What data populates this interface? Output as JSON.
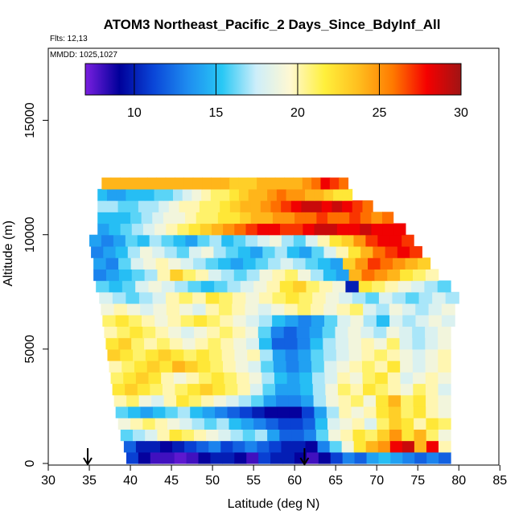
{
  "chart_data": {
    "type": "heatmap",
    "title": "ATOM3 Northeast_Pacific_2 Days_Since_BdyInf_All",
    "flights_text": "Flts: 12,13",
    "mmdd_text": "MMDD: 1025,1027",
    "xlabel": "Latitude (deg N)",
    "ylabel": "Altitude (m)",
    "xlim": [
      30,
      85
    ],
    "ylim": [
      0,
      17500
    ],
    "x_ticks": [
      30,
      35,
      40,
      45,
      50,
      55,
      60,
      65,
      70,
      75,
      80,
      85
    ],
    "y_ticks": [
      0,
      5000,
      10000,
      15000
    ],
    "colorbar": {
      "range": [
        7,
        30
      ],
      "ticks": [
        10,
        15,
        20,
        25,
        30
      ],
      "colors": [
        "#7a1fe0",
        "#00009a",
        "#0a46d8",
        "#1e8cf0",
        "#28c8f5",
        "#cdeefa",
        "#fff8d2",
        "#fff03c",
        "#ffbe1e",
        "#ff7a00",
        "#f50000",
        "#a01414"
      ]
    },
    "arrows_lat": [
      34.8,
      61.2
    ],
    "grid": false,
    "legend": "colorbar top",
    "rows": [
      {
        "alt": 250,
        "lat_range": [
          39.5,
          79
        ],
        "values": [
          11,
          9,
          8,
          8,
          7.5,
          8,
          9,
          10,
          10,
          9,
          8,
          11,
          10,
          10,
          9,
          8,
          9,
          11,
          13,
          12,
          14,
          15,
          14,
          13,
          12,
          13,
          12
        ]
      },
      {
        "alt": 750,
        "lat_range": [
          39.2,
          79
        ],
        "values": [
          12,
          10,
          10,
          9,
          10,
          11,
          12,
          13,
          11,
          12,
          13,
          12,
          11,
          10,
          10,
          9,
          13,
          16,
          19,
          22,
          24,
          25,
          28,
          29,
          24,
          28,
          20
        ]
      },
      {
        "alt": 1250,
        "lat_range": [
          38.8,
          79
        ],
        "values": [
          16,
          17,
          18,
          20,
          22,
          21,
          20,
          19,
          18,
          17,
          16,
          17,
          14,
          12,
          12,
          13,
          16,
          19,
          20,
          22,
          21,
          23,
          25,
          22,
          24,
          21,
          19
        ]
      },
      {
        "alt": 1750,
        "lat_range": [
          38.5,
          79
        ],
        "values": [
          19,
          20,
          21,
          20,
          19,
          18,
          17,
          16,
          17,
          15,
          14,
          13,
          12,
          11,
          11,
          12,
          15,
          18,
          19,
          20,
          18,
          21,
          23,
          22,
          20,
          22,
          21
        ]
      },
      {
        "alt": 2250,
        "lat_range": [
          38.2,
          79
        ],
        "values": [
          16,
          15,
          14,
          15,
          16,
          17,
          15,
          14,
          13,
          12,
          11,
          10,
          9,
          9,
          9,
          11,
          14,
          17,
          20,
          19,
          20,
          22,
          23,
          21,
          22,
          20,
          19
        ]
      },
      {
        "alt": 2750,
        "lat_range": [
          38,
          79
        ],
        "values": [
          20,
          21,
          19,
          18,
          20,
          22,
          21,
          20,
          19,
          18,
          17,
          16,
          14,
          13,
          13,
          14,
          17,
          19,
          20,
          21,
          19,
          22,
          24,
          21,
          22,
          20,
          19
        ]
      },
      {
        "alt": 3250,
        "lat_range": [
          37.8,
          79
        ],
        "values": [
          22,
          23,
          22,
          21,
          20,
          21,
          22,
          23,
          22,
          21,
          20,
          18,
          16,
          14,
          14,
          15,
          17,
          19,
          21,
          20,
          22,
          21,
          20,
          19,
          21,
          20,
          18
        ]
      },
      {
        "alt": 3750,
        "lat_range": [
          37.6,
          79
        ],
        "values": [
          21,
          22,
          23,
          22,
          20,
          19,
          20,
          21,
          22,
          21,
          20,
          19,
          17,
          15,
          14,
          15,
          17,
          18,
          20,
          19,
          21,
          22,
          20,
          18,
          19,
          20,
          19
        ]
      },
      {
        "alt": 4250,
        "lat_range": [
          37.4,
          79
        ],
        "values": [
          20,
          21,
          22,
          23,
          22,
          24,
          23,
          22,
          21,
          20,
          19,
          18,
          16,
          14,
          13,
          14,
          16,
          18,
          19,
          20,
          21,
          20,
          22,
          19,
          18,
          19,
          20
        ]
      },
      {
        "alt": 4750,
        "lat_range": [
          37.2,
          79
        ],
        "values": [
          23,
          22,
          21,
          22,
          23,
          22,
          21,
          22,
          21,
          20,
          19,
          20,
          17,
          14,
          13,
          14,
          16,
          17,
          18,
          19,
          20,
          21,
          20,
          19,
          18,
          19,
          20
        ]
      },
      {
        "alt": 5250,
        "lat_range": [
          37,
          79
        ],
        "values": [
          22,
          23,
          21,
          20,
          21,
          20,
          19,
          20,
          21,
          20,
          19,
          18,
          15,
          12,
          12,
          13,
          15,
          17,
          18,
          19,
          20,
          19,
          21,
          18,
          17,
          18,
          19
        ]
      },
      {
        "alt": 5750,
        "lat_range": [
          36.8,
          79
        ],
        "values": [
          20,
          21,
          22,
          21,
          20,
          19,
          18,
          19,
          20,
          21,
          20,
          19,
          16,
          13,
          12,
          13,
          14,
          16,
          18,
          19,
          18,
          17,
          19,
          18,
          17,
          18,
          19
        ]
      },
      {
        "alt": 6250,
        "lat_range": [
          36.6,
          79.5
        ],
        "values": [
          21,
          22,
          21,
          20,
          19,
          20,
          21,
          22,
          21,
          20,
          19,
          18,
          17,
          15,
          14,
          13,
          14,
          16,
          18,
          19,
          17,
          15,
          18,
          17,
          18,
          19,
          18
        ]
      },
      {
        "alt": 6750,
        "lat_range": [
          36.4,
          79.5
        ],
        "values": [
          19,
          20,
          19,
          18,
          19,
          20,
          19,
          18,
          20,
          21,
          20,
          19,
          18,
          19,
          20,
          21,
          20,
          19,
          20,
          21,
          18,
          17,
          19,
          18,
          17,
          18,
          19
        ]
      },
      {
        "alt": 7250,
        "lat_range": [
          36.2,
          80
        ],
        "values": [
          18,
          17,
          16,
          17,
          18,
          20,
          21,
          20,
          22,
          21,
          20,
          19,
          20,
          21,
          22,
          21,
          20,
          19,
          18,
          17,
          16,
          18,
          17,
          16,
          17,
          18,
          17
        ]
      },
      {
        "alt": 7750,
        "lat_range": [
          35.8,
          79
        ],
        "values": [
          16,
          15,
          16,
          18,
          19,
          18,
          17,
          16,
          15,
          16,
          17,
          18,
          19,
          20,
          22,
          23,
          21,
          20,
          19,
          10,
          22,
          21,
          20,
          19,
          18,
          17,
          16
        ]
      },
      {
        "alt": 8250,
        "lat_range": [
          35.5,
          77.5
        ],
        "values": [
          13,
          14,
          15,
          16,
          17,
          20,
          23,
          21,
          20,
          18,
          17,
          16,
          17,
          19,
          20,
          21,
          19,
          17,
          15,
          14,
          24,
          26,
          25,
          24,
          22,
          21,
          20
        ]
      },
      {
        "alt": 8750,
        "lat_range": [
          35.5,
          76.5
        ],
        "values": [
          14,
          13,
          16,
          18,
          19,
          20,
          19,
          18,
          17,
          16,
          15,
          14,
          15,
          16,
          17,
          18,
          17,
          16,
          15,
          14,
          23,
          25,
          27,
          26,
          25,
          24,
          23
        ]
      },
      {
        "alt": 9250,
        "lat_range": [
          35.2,
          75.5
        ],
        "values": [
          13,
          14,
          15,
          17,
          19,
          18,
          17,
          16,
          18,
          19,
          17,
          16,
          15,
          14,
          16,
          17,
          15,
          14,
          16,
          18,
          20,
          22,
          24,
          26,
          27,
          28,
          27
        ]
      },
      {
        "alt": 9750,
        "lat_range": [
          35,
          74.5
        ],
        "values": [
          14,
          13,
          14,
          16,
          15,
          17,
          16,
          15,
          14,
          16,
          17,
          15,
          16,
          17,
          18,
          19,
          17,
          16,
          18,
          20,
          22,
          23,
          25,
          27,
          28,
          28,
          27
        ]
      },
      {
        "alt": 10250,
        "lat_range": [
          36,
          73.5
        ],
        "values": [
          14,
          15,
          16,
          17,
          18,
          19,
          20,
          21,
          22,
          23,
          24,
          25,
          26,
          27,
          28,
          28,
          27,
          27,
          28,
          29,
          29,
          28,
          28,
          29,
          28,
          28,
          28
        ]
      },
      {
        "alt": 10750,
        "lat_range": [
          36,
          72
        ],
        "values": [
          15,
          15,
          15,
          16,
          17,
          18,
          19,
          19,
          20,
          21,
          21,
          22,
          22,
          23,
          24,
          24,
          25,
          25,
          26,
          26,
          27,
          26,
          26,
          27,
          26,
          25,
          26
        ]
      },
      {
        "alt": 11250,
        "lat_range": [
          36,
          69.5
        ],
        "values": [
          17,
          17,
          16,
          16,
          17,
          17,
          18,
          19,
          20,
          20,
          21,
          21,
          22,
          23,
          24,
          24,
          25,
          26,
          27,
          28,
          29,
          29,
          28,
          29,
          28,
          27,
          26
        ]
      },
      {
        "alt": 11750,
        "lat_range": [
          36,
          67
        ],
        "values": [
          15,
          14,
          14,
          15,
          15,
          15,
          16,
          16,
          17,
          18,
          19,
          20,
          21,
          21,
          22,
          23,
          24,
          24,
          25,
          26,
          25,
          25,
          24,
          24,
          23,
          22,
          22
        ]
      },
      {
        "alt": 12250,
        "lat_range": [
          36.5,
          66.5
        ],
        "values": [
          24,
          24,
          24,
          24,
          24,
          24,
          24,
          24,
          24,
          24,
          24,
          24,
          24,
          24,
          23,
          23,
          23,
          24,
          24,
          24,
          24,
          24,
          25,
          26,
          28,
          27,
          26
        ]
      }
    ]
  }
}
